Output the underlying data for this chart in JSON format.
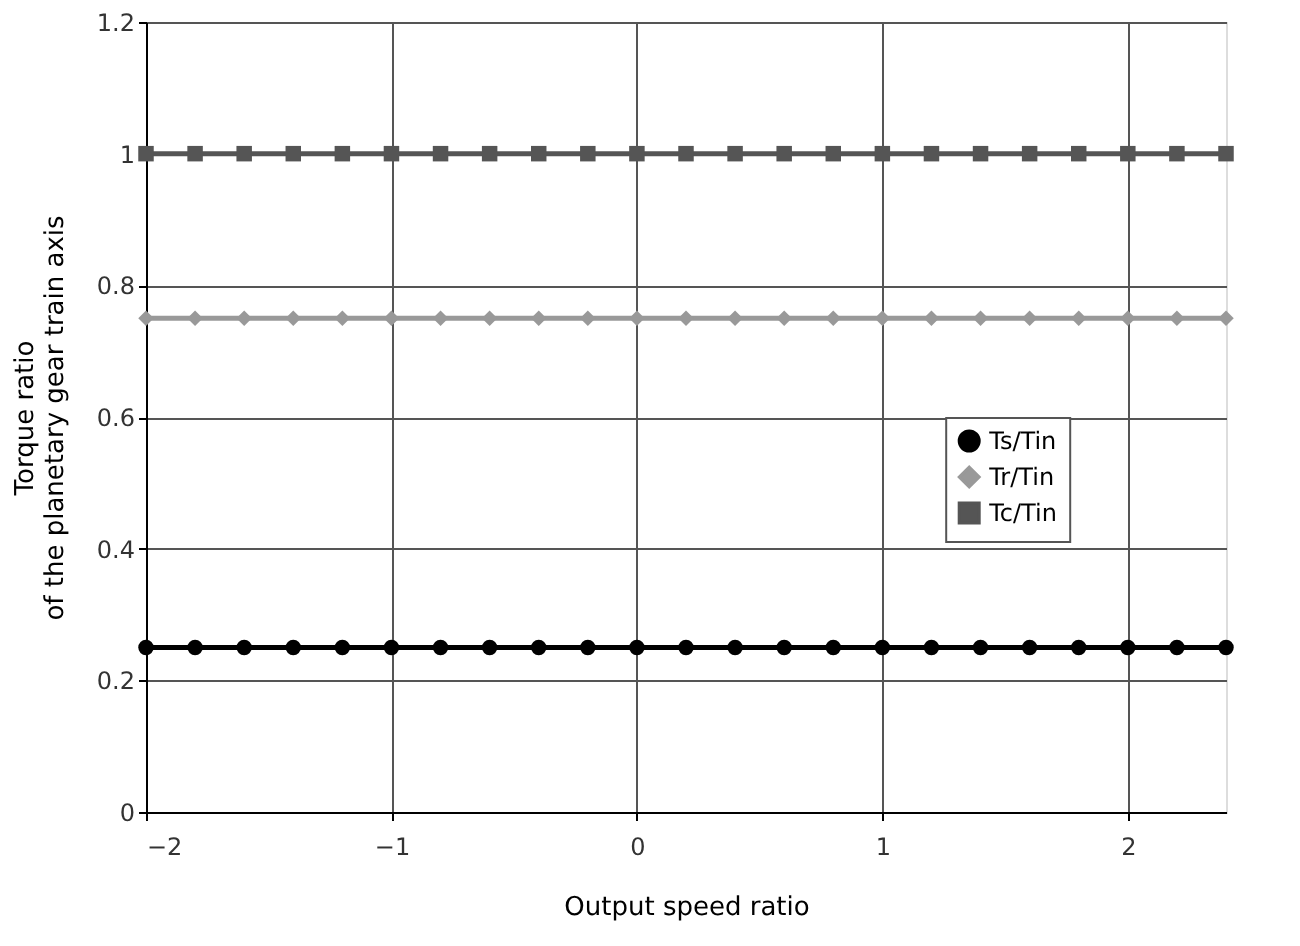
{
  "chart_data": {
    "type": "line",
    "xlabel": "Output speed ratio",
    "ylabel": "Torque ratio\nof the planetary gear train axis",
    "x": [
      -2,
      -1.8,
      -1.6,
      -1.4,
      -1.2,
      -1,
      -0.8,
      -0.6,
      -0.4,
      -0.2,
      0,
      0.2,
      0.4,
      0.6,
      0.8,
      1,
      1.2,
      1.4,
      1.6,
      1.8,
      2,
      2.2,
      2.4
    ],
    "series": [
      {
        "name": "Ts/Tin",
        "color": "#000000",
        "marker": "circle",
        "values": [
          0.25,
          0.25,
          0.25,
          0.25,
          0.25,
          0.25,
          0.25,
          0.25,
          0.25,
          0.25,
          0.25,
          0.25,
          0.25,
          0.25,
          0.25,
          0.25,
          0.25,
          0.25,
          0.25,
          0.25,
          0.25,
          0.25,
          0.25
        ]
      },
      {
        "name": "Tr/Tin",
        "color": "#999999",
        "marker": "diamond",
        "values": [
          0.75,
          0.75,
          0.75,
          0.75,
          0.75,
          0.75,
          0.75,
          0.75,
          0.75,
          0.75,
          0.75,
          0.75,
          0.75,
          0.75,
          0.75,
          0.75,
          0.75,
          0.75,
          0.75,
          0.75,
          0.75,
          0.75,
          0.75
        ]
      },
      {
        "name": "Tc/Tin",
        "color": "#555555",
        "marker": "square",
        "values": [
          1,
          1,
          1,
          1,
          1,
          1,
          1,
          1,
          1,
          1,
          1,
          1,
          1,
          1,
          1,
          1,
          1,
          1,
          1,
          1,
          1,
          1,
          1
        ]
      }
    ],
    "xlim": [
      -2,
      2.4
    ],
    "xticks": [
      {
        "value": -2,
        "label": "−2"
      },
      {
        "value": -1,
        "label": "−1"
      },
      0,
      1,
      2
    ],
    "ylim": [
      0,
      1.2
    ],
    "yticks": [
      0,
      0.2,
      0.4,
      0.6,
      0.8,
      1,
      1.2
    ],
    "grid": true,
    "legend": "right",
    "line_style": "solid"
  }
}
